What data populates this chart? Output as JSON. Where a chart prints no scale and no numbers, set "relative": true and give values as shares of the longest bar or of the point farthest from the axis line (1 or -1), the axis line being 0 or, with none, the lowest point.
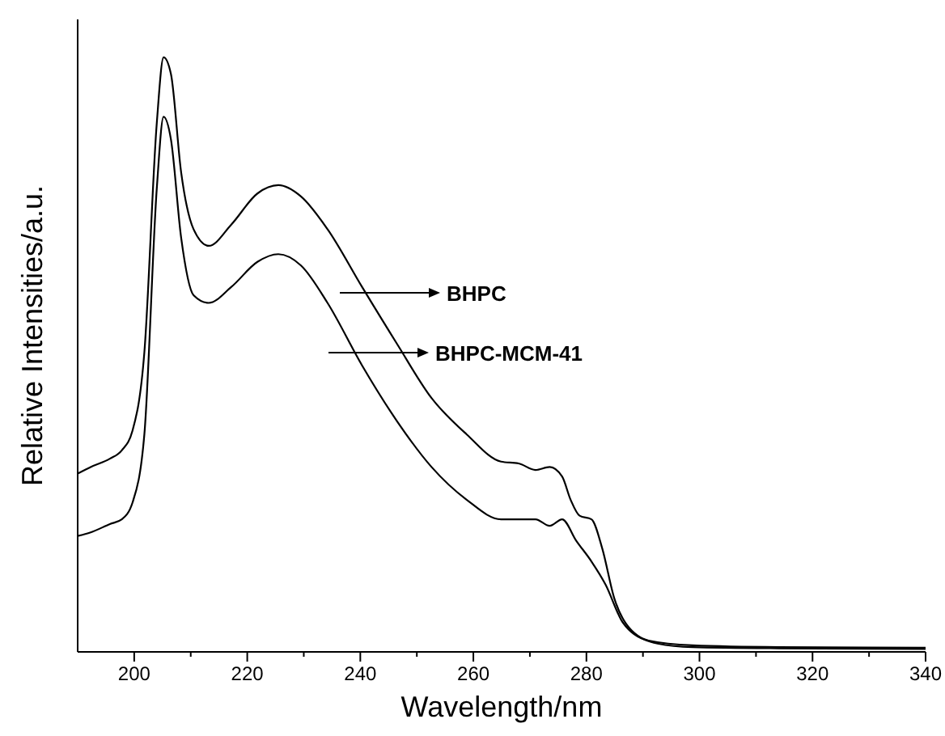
{
  "chart_data": {
    "type": "line",
    "relative": true,
    "xlabel": "Wavelength/nm",
    "ylabel": "Relative Intensities/a.u.",
    "xlim": [
      190,
      340
    ],
    "xticks": [
      {
        "value": 200,
        "label": "200"
      },
      {
        "value": 210,
        "label": null
      },
      {
        "value": 220,
        "label": "220"
      },
      {
        "value": 230,
        "label": null
      },
      {
        "value": 240,
        "label": "240"
      },
      {
        "value": 250,
        "label": null
      },
      {
        "value": 260,
        "label": "260"
      },
      {
        "value": 270,
        "label": null
      },
      {
        "value": 280,
        "label": "280"
      },
      {
        "value": 290,
        "label": null
      },
      {
        "value": 300,
        "label": "300"
      },
      {
        "value": 310,
        "label": null
      },
      {
        "value": 320,
        "label": "320"
      },
      {
        "value": 330,
        "label": null
      },
      {
        "value": 340,
        "label": "340"
      }
    ],
    "grid": false,
    "marker": "none",
    "line_style": "solid",
    "series": [
      {
        "color": "#000000",
        "x": [
          190,
          192.3,
          195.7,
          197.8,
          199.7,
          201.8,
          204,
          205.2,
          206.5,
          208.3,
          210.5,
          213.2,
          217.2,
          221.8,
          225.5,
          229.5,
          234.2,
          240.3,
          246.5,
          252.6,
          258.8,
          264.9,
          268,
          271,
          273.5,
          275.7,
          277.2,
          278.8,
          280.9,
          282.8,
          284.9,
          288,
          292.6,
          298.8,
          314,
          340
        ],
        "values": [
          0.3,
          0.311,
          0.325,
          0.339,
          0.372,
          0.504,
          0.89,
          1.0,
          0.972,
          0.807,
          0.711,
          0.683,
          0.719,
          0.771,
          0.785,
          0.766,
          0.711,
          0.614,
          0.518,
          0.427,
          0.366,
          0.32,
          0.317,
          0.306,
          0.311,
          0.295,
          0.256,
          0.229,
          0.223,
          0.174,
          0.091,
          0.036,
          0.014,
          0.008,
          0.006,
          0.005
        ]
      },
      {
        "color": "#000000",
        "x": [
          190,
          192.3,
          195.7,
          197.8,
          199.7,
          201.8,
          204,
          205.2,
          206.5,
          208.3,
          210.5,
          213.2,
          217.2,
          221.8,
          225.5,
          229.5,
          234.2,
          240.3,
          246.5,
          252.6,
          258.8,
          264.9,
          271,
          273.5,
          275.7,
          278.2,
          280.9,
          283.4,
          286.4,
          291,
          298.8,
          314,
          340
        ],
        "values": [
          0.195,
          0.201,
          0.215,
          0.223,
          0.251,
          0.366,
          0.78,
          0.9,
          0.862,
          0.697,
          0.6,
          0.587,
          0.614,
          0.656,
          0.669,
          0.65,
          0.587,
          0.482,
          0.388,
          0.311,
          0.256,
          0.223,
          0.223,
          0.212,
          0.223,
          0.187,
          0.152,
          0.113,
          0.05,
          0.019,
          0.011,
          0.008,
          0.007
        ]
      }
    ],
    "annotations": [
      "BHPC",
      "BHPC-MCM-41"
    ]
  }
}
